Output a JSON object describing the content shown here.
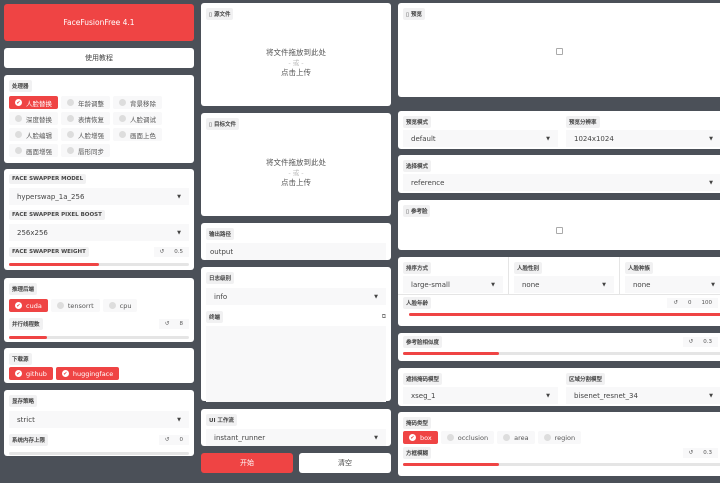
{
  "app": {
    "title": "FaceFusionFree 4.1",
    "tutorial": "使用教程"
  },
  "processors": {
    "label": "处理器",
    "items": [
      {
        "label": "人脸替换",
        "on": true
      },
      {
        "label": "年龄调整"
      },
      {
        "label": "背景移除"
      },
      {
        "label": "深度替换"
      },
      {
        "label": "表情恢复"
      },
      {
        "label": "人脸调试"
      },
      {
        "label": "人脸编辑"
      },
      {
        "label": "人脸增强"
      },
      {
        "label": "画面上色"
      },
      {
        "label": "画面增强"
      },
      {
        "label": "唇形同步"
      }
    ]
  },
  "swapper": {
    "model_label": "FACE SWAPPER MODEL",
    "model": "hyperswap_1a_256",
    "boost_label": "FACE SWAPPER PIXEL BOOST",
    "boost": "256x256",
    "weight_label": "FACE SWAPPER WEIGHT",
    "weight": "0.5",
    "weight_fraction": 0.5
  },
  "backend": {
    "label": "推理后端",
    "items": [
      "cuda",
      "tensorrt",
      "cpu"
    ],
    "threads_label": "并行线程数",
    "threads": "8",
    "threads_fraction": 0.21
  },
  "download": {
    "label": "下载源",
    "items": [
      "github",
      "huggingface"
    ]
  },
  "memory": {
    "label": "显存策略",
    "strategy": "strict",
    "limit_label": "系统内存上限",
    "limit": "0"
  },
  "source": {
    "label": "源文件",
    "drop": "将文件拖放到此处",
    "or": "- 或 -",
    "click": "点击上传"
  },
  "target": {
    "label": "目标文件",
    "drop": "将文件拖放到此处",
    "or": "- 或 -",
    "click": "点击上传"
  },
  "output": {
    "label": "输出路径",
    "value": "output"
  },
  "log": {
    "label": "日志级别",
    "value": "info",
    "terminal_label": "终端"
  },
  "workflow": {
    "label": "UI 工作流",
    "value": "instant_runner"
  },
  "actions": {
    "start": "开始",
    "clear": "清空"
  },
  "preview": {
    "label": "预览",
    "mode_label": "预览模式",
    "mode": "default",
    "res_label": "预览分辨率",
    "res": "1024x1024"
  },
  "selector": {
    "label": "选择模式",
    "value": "reference",
    "ref_label": "参考脸"
  },
  "face": {
    "order_label": "排序方式",
    "order": "large-small",
    "gender_label": "人脸性别",
    "gender": "none",
    "race_label": "人脸种族",
    "race": "none",
    "age_label": "人脸年龄",
    "age_min": "0",
    "age_max": "100"
  },
  "similarity": {
    "label": "参考脸相似度",
    "value": "0.3",
    "fraction": 0.3
  },
  "mask": {
    "occluder_label": "遮挡掩码模型",
    "occluder": "xseg_1",
    "parser_label": "区域分割模型",
    "parser": "bisenet_resnet_34",
    "types_label": "掩码类型",
    "types": [
      {
        "label": "box",
        "on": true
      },
      {
        "label": "occlusion"
      },
      {
        "label": "area"
      },
      {
        "label": "region"
      }
    ],
    "blur_label": "方框模糊",
    "blur": "0.3",
    "blur_fraction": 0.3
  },
  "colors": {
    "accent": "#ef4444",
    "background": "#4b5058"
  }
}
